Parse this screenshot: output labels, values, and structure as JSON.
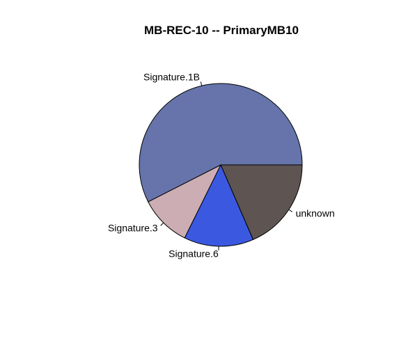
{
  "chart_data": {
    "type": "pie",
    "title": "MB-REC-10 -- PrimaryMB10",
    "slices": [
      {
        "label": "unknown",
        "value": 0.185,
        "color": "#5e5451"
      },
      {
        "label": "Signature.6",
        "value": 0.138,
        "color": "#3b59e0"
      },
      {
        "label": "Signature.3",
        "value": 0.102,
        "color": "#cbadb3"
      },
      {
        "label": "Signature.1B",
        "value": 0.575,
        "color": "#6674ab"
      }
    ],
    "direction": "clockwise",
    "start_angle_deg": 0
  }
}
